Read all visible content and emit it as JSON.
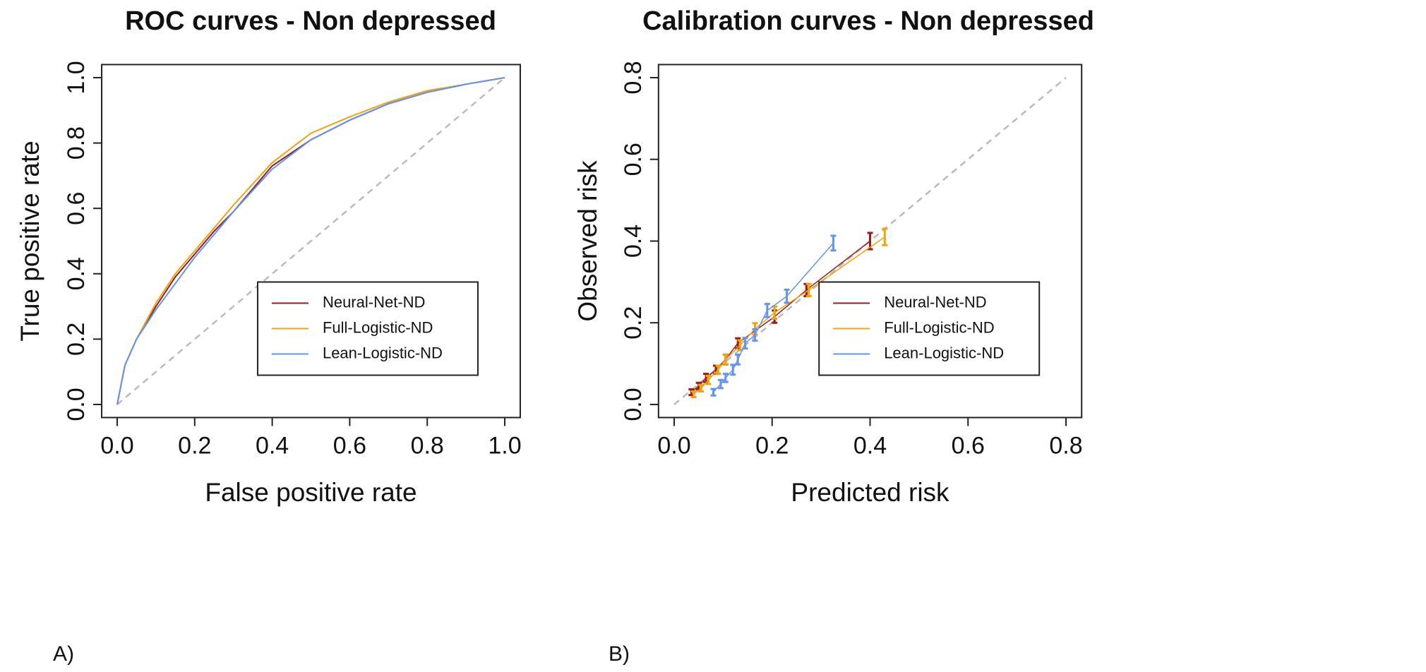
{
  "chart_data": [
    {
      "type": "line",
      "title": "ROC curves - Non depressed",
      "x_label": "False positive rate",
      "y_label": "True positive rate",
      "panel_label": "A)",
      "xlim": [
        0,
        1
      ],
      "ylim": [
        0,
        1
      ],
      "xticks": [
        "0.0",
        0.2,
        0.4,
        0.6,
        0.8,
        "1.0"
      ],
      "yticks": [
        "0.0",
        0.2,
        0.4,
        0.6,
        0.8,
        "1.0"
      ],
      "diagonal": true,
      "legend": "bottom-right",
      "series": [
        {
          "name": "Neural-Net-ND",
          "color": "#9b1b1b",
          "x": [
            0,
            0.02,
            0.05,
            0.1,
            0.15,
            0.2,
            0.25,
            0.3,
            0.4,
            0.5,
            0.6,
            0.7,
            0.8,
            0.9,
            1
          ],
          "values": [
            0,
            0.12,
            0.2,
            0.3,
            0.39,
            0.46,
            0.53,
            0.59,
            0.73,
            0.81,
            0.87,
            0.92,
            0.955,
            0.98,
            1
          ]
        },
        {
          "name": "Full-Logistic-ND",
          "color": "#f0a30a",
          "x": [
            0,
            0.02,
            0.05,
            0.1,
            0.15,
            0.2,
            0.25,
            0.3,
            0.4,
            0.5,
            0.6,
            0.7,
            0.8,
            0.9,
            1
          ],
          "values": [
            0,
            0.12,
            0.2,
            0.31,
            0.4,
            0.47,
            0.54,
            0.61,
            0.74,
            0.83,
            0.88,
            0.925,
            0.96,
            0.98,
            1
          ]
        },
        {
          "name": "Lean-Logistic-ND",
          "color": "#6495ed",
          "x": [
            0,
            0.02,
            0.05,
            0.1,
            0.15,
            0.2,
            0.25,
            0.3,
            0.4,
            0.5,
            0.6,
            0.7,
            0.8,
            0.9,
            1
          ],
          "values": [
            0,
            0.12,
            0.2,
            0.29,
            0.37,
            0.45,
            0.52,
            0.59,
            0.72,
            0.81,
            0.87,
            0.92,
            0.955,
            0.98,
            1
          ]
        }
      ]
    },
    {
      "type": "errorline",
      "title": "Calibration curves - Non depressed",
      "x_label": "Predicted risk",
      "y_label": "Observed risk",
      "panel_label": "B)",
      "xlim": [
        0,
        0.8
      ],
      "ylim": [
        0,
        0.8
      ],
      "xticks": [
        "0.0",
        0.2,
        0.4,
        0.6,
        0.8
      ],
      "yticks": [
        "0.0",
        0.2,
        0.4,
        0.6,
        0.8
      ],
      "diagonal": true,
      "legend": "bottom-right",
      "series": [
        {
          "name": "Neural-Net-ND",
          "color": "#9b1b1b",
          "x": [
            0.035,
            0.05,
            0.065,
            0.085,
            0.105,
            0.13,
            0.205,
            0.27,
            0.4
          ],
          "values": [
            0.03,
            0.045,
            0.065,
            0.085,
            0.11,
            0.15,
            0.215,
            0.28,
            0.4
          ],
          "errors": [
            0.007,
            0.008,
            0.01,
            0.01,
            0.012,
            0.012,
            0.015,
            0.015,
            0.02
          ]
        },
        {
          "name": "Full-Logistic-ND",
          "color": "#f0a30a",
          "x": [
            0.04,
            0.055,
            0.07,
            0.09,
            0.105,
            0.135,
            0.165,
            0.205,
            0.275,
            0.43
          ],
          "values": [
            0.025,
            0.04,
            0.06,
            0.085,
            0.11,
            0.145,
            0.185,
            0.225,
            0.28,
            0.41
          ],
          "errors": [
            0.007,
            0.008,
            0.01,
            0.01,
            0.012,
            0.012,
            0.014,
            0.015,
            0.015,
            0.02
          ]
        },
        {
          "name": "Lean-Logistic-ND",
          "color": "#6495ed",
          "x": [
            0.08,
            0.095,
            0.105,
            0.12,
            0.13,
            0.145,
            0.165,
            0.19,
            0.23,
            0.325
          ],
          "values": [
            0.03,
            0.05,
            0.065,
            0.085,
            0.11,
            0.15,
            0.17,
            0.23,
            0.265,
            0.395
          ],
          "errors": [
            0.008,
            0.01,
            0.01,
            0.012,
            0.012,
            0.013,
            0.014,
            0.016,
            0.016,
            0.018
          ]
        }
      ]
    }
  ]
}
